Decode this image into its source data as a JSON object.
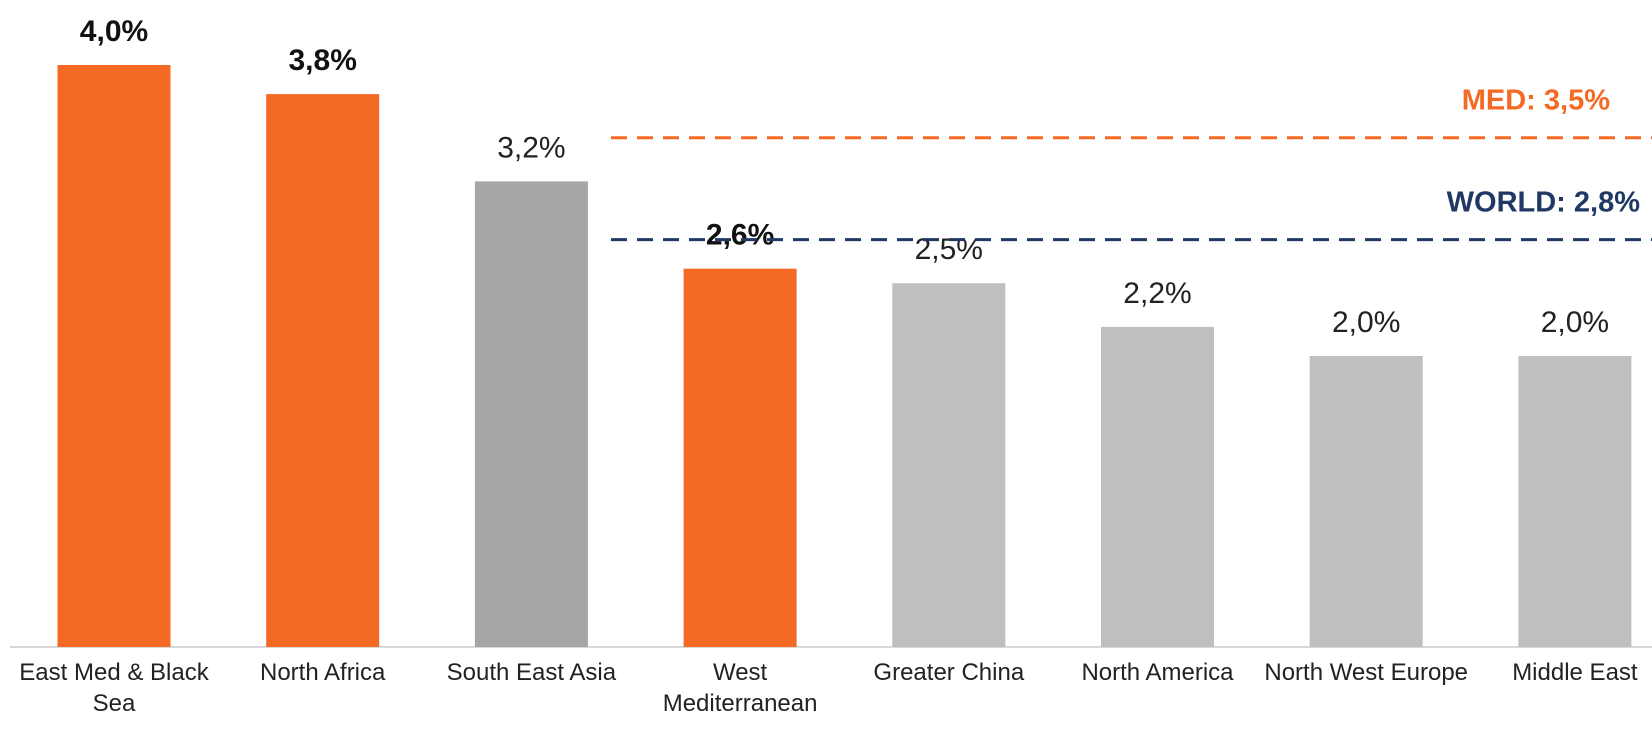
{
  "chart_data": {
    "type": "bar",
    "categories": [
      "East Med & Black Sea",
      "North Africa",
      "South East Asia",
      "West Mediterranean",
      "Greater China",
      "North America",
      "North West Europe",
      "Middle East"
    ],
    "values": [
      4.0,
      3.8,
      3.2,
      2.6,
      2.5,
      2.2,
      2.0,
      2.0
    ],
    "value_labels": [
      "4,0%",
      "3,8%",
      "3,2%",
      "2,6%",
      "2,5%",
      "2,2%",
      "2,0%",
      "2,0%"
    ],
    "colors": [
      "#f46a24",
      "#f46a24",
      "#a6a6a6",
      "#f46a24",
      "#bfbfbf",
      "#bfbfbf",
      "#bfbfbf",
      "#bfbfbf"
    ],
    "bold_labels": [
      true,
      true,
      false,
      true,
      false,
      false,
      false,
      false
    ],
    "reference_lines": [
      {
        "label": "MED: 3,5%",
        "value": 3.5,
        "color": "#f46a24"
      },
      {
        "label": "WORLD: 2,8%",
        "value": 2.8,
        "color": "#1f3864"
      }
    ]
  }
}
